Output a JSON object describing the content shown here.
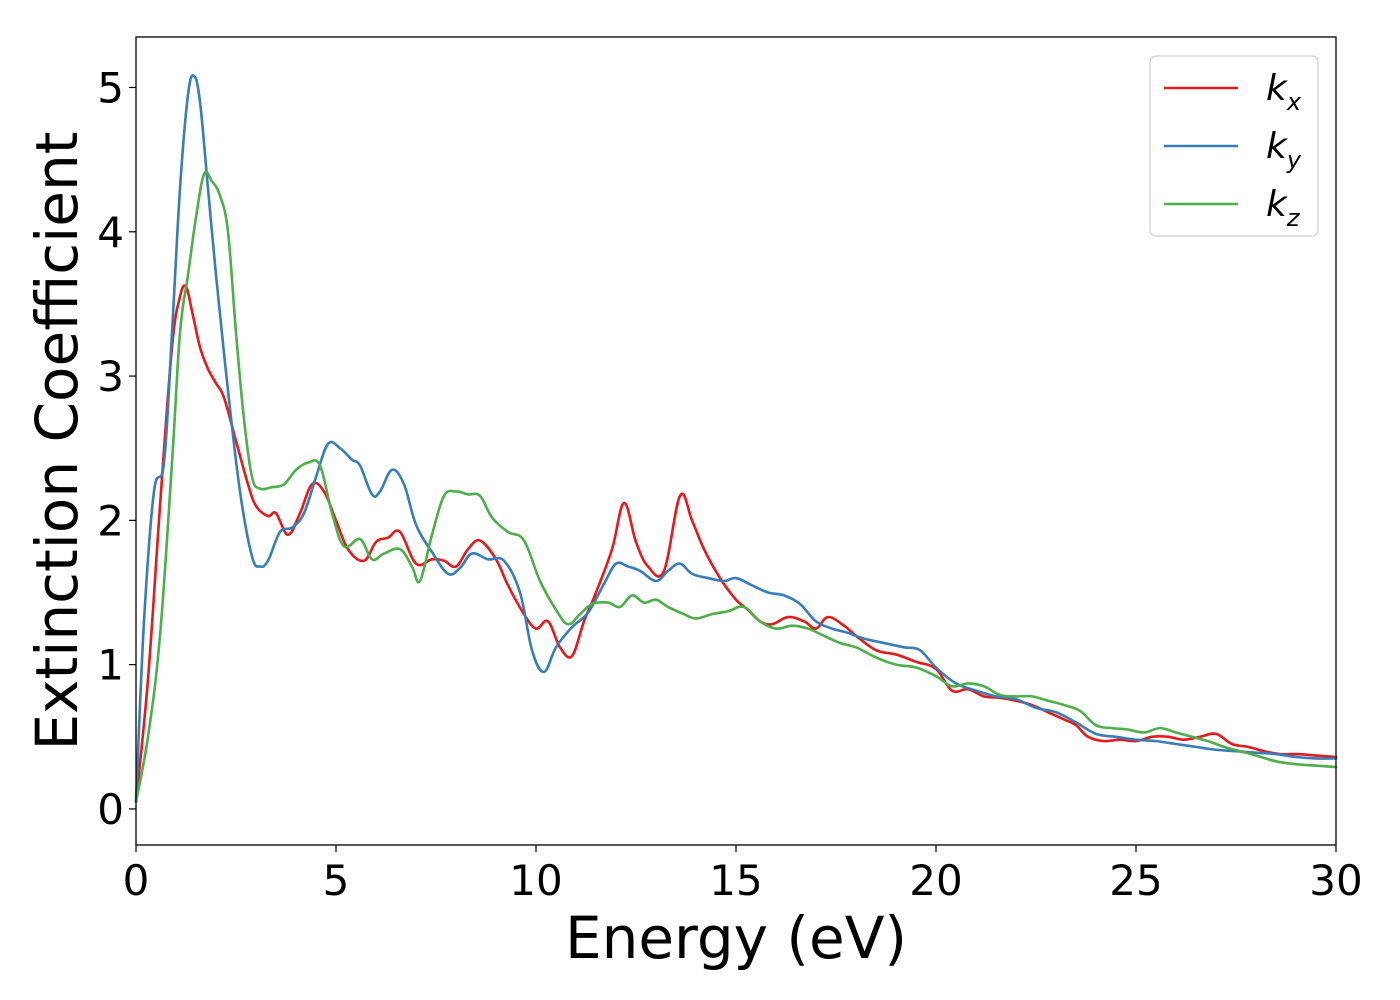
{
  "chart_data": {
    "type": "line",
    "xlabel": "Energy (eV)",
    "ylabel": "Extinction Coefficient",
    "xlim": [
      0,
      30
    ],
    "ylim": [
      -0.25,
      5.35
    ],
    "xticks": [
      0,
      5,
      10,
      15,
      20,
      25,
      30
    ],
    "yticks": [
      0,
      1,
      2,
      3,
      4,
      5
    ],
    "grid": false,
    "legend_position": "top-right",
    "series": [
      {
        "name": "k",
        "subscript": "x",
        "color": "#e41a1c",
        "x": [
          0,
          0.3,
          0.6,
          0.9,
          1.1,
          1.25,
          1.4,
          1.6,
          1.8,
          2.0,
          2.2,
          2.5,
          2.8,
          3.0,
          3.3,
          3.5,
          3.8,
          4.1,
          4.4,
          4.7,
          5.0,
          5.3,
          5.7,
          6.0,
          6.3,
          6.6,
          7.0,
          7.4,
          7.7,
          8.0,
          8.3,
          8.6,
          9.0,
          9.3,
          9.7,
          10.0,
          10.3,
          10.6,
          10.9,
          11.2,
          11.5,
          11.9,
          12.2,
          12.5,
          12.8,
          13.2,
          13.6,
          13.9,
          14.2,
          14.6,
          15.0,
          15.3,
          15.6,
          15.9,
          16.3,
          16.7,
          17.0,
          17.3,
          17.7,
          18.0,
          18.5,
          19.0,
          19.5,
          20.0,
          20.4,
          20.8,
          21.2,
          21.6,
          22.0,
          22.4,
          22.8,
          23.2,
          23.5,
          23.8,
          24.2,
          24.6,
          25.0,
          25.4,
          25.8,
          26.2,
          26.6,
          27.0,
          27.4,
          27.8,
          28.2,
          28.6,
          29.0,
          29.5,
          30.0
        ],
        "y": [
          0.05,
          0.9,
          2.1,
          3.2,
          3.55,
          3.62,
          3.45,
          3.2,
          3.05,
          2.95,
          2.85,
          2.55,
          2.25,
          2.1,
          2.03,
          2.05,
          1.9,
          2.05,
          2.25,
          2.2,
          2.0,
          1.8,
          1.72,
          1.85,
          1.88,
          1.92,
          1.7,
          1.73,
          1.72,
          1.68,
          1.8,
          1.86,
          1.73,
          1.55,
          1.35,
          1.25,
          1.3,
          1.12,
          1.06,
          1.3,
          1.5,
          1.8,
          2.12,
          1.85,
          1.68,
          1.65,
          2.17,
          2.0,
          1.8,
          1.6,
          1.45,
          1.38,
          1.3,
          1.28,
          1.33,
          1.3,
          1.25,
          1.33,
          1.27,
          1.2,
          1.1,
          1.07,
          1.02,
          0.97,
          0.82,
          0.83,
          0.78,
          0.77,
          0.75,
          0.72,
          0.67,
          0.62,
          0.58,
          0.5,
          0.47,
          0.48,
          0.47,
          0.5,
          0.5,
          0.48,
          0.5,
          0.52,
          0.45,
          0.43,
          0.4,
          0.38,
          0.38,
          0.37,
          0.36
        ]
      },
      {
        "name": "k",
        "subscript": "y",
        "color": "#377eb8",
        "x": [
          0,
          0.2,
          0.45,
          0.7,
          0.9,
          1.1,
          1.3,
          1.45,
          1.6,
          1.8,
          2.0,
          2.3,
          2.6,
          2.9,
          3.1,
          3.3,
          3.6,
          3.9,
          4.2,
          4.5,
          4.8,
          5.1,
          5.4,
          5.6,
          5.9,
          6.1,
          6.4,
          6.7,
          7.0,
          7.4,
          7.8,
          8.1,
          8.4,
          8.8,
          9.2,
          9.6,
          9.9,
          10.2,
          10.5,
          10.9,
          11.3,
          11.7,
          12.0,
          12.3,
          12.6,
          13.0,
          13.3,
          13.6,
          13.9,
          14.3,
          14.7,
          15.0,
          15.4,
          15.8,
          16.2,
          16.6,
          17.0,
          17.4,
          17.8,
          18.2,
          18.7,
          19.2,
          19.6,
          20.0,
          20.5,
          21.0,
          21.5,
          22.0,
          22.5,
          23.0,
          23.5,
          24.0,
          24.5,
          25.0,
          25.5,
          26.0,
          26.5,
          27.0,
          27.5,
          28.0,
          28.5,
          29.0,
          29.5,
          30.0
        ],
        "y": [
          0.05,
          1.3,
          2.2,
          2.4,
          3.3,
          4.3,
          4.95,
          5.08,
          4.9,
          4.3,
          3.7,
          2.9,
          2.2,
          1.75,
          1.68,
          1.72,
          1.92,
          1.95,
          2.05,
          2.3,
          2.53,
          2.5,
          2.42,
          2.38,
          2.18,
          2.2,
          2.35,
          2.25,
          1.97,
          1.78,
          1.63,
          1.67,
          1.77,
          1.73,
          1.72,
          1.5,
          1.1,
          0.95,
          1.12,
          1.26,
          1.36,
          1.56,
          1.7,
          1.68,
          1.65,
          1.58,
          1.65,
          1.7,
          1.63,
          1.6,
          1.58,
          1.6,
          1.55,
          1.5,
          1.48,
          1.42,
          1.3,
          1.25,
          1.22,
          1.18,
          1.15,
          1.12,
          1.1,
          0.98,
          0.87,
          0.82,
          0.78,
          0.76,
          0.7,
          0.67,
          0.6,
          0.52,
          0.5,
          0.48,
          0.47,
          0.45,
          0.43,
          0.41,
          0.4,
          0.39,
          0.38,
          0.36,
          0.35,
          0.35
        ]
      },
      {
        "name": "k",
        "subscript": "z",
        "color": "#4daf4a",
        "x": [
          0,
          0.3,
          0.6,
          0.9,
          1.1,
          1.3,
          1.5,
          1.7,
          1.9,
          2.1,
          2.3,
          2.5,
          2.7,
          2.9,
          3.1,
          3.4,
          3.7,
          4.0,
          4.3,
          4.6,
          4.9,
          5.2,
          5.6,
          5.9,
          6.2,
          6.6,
          6.9,
          7.1,
          7.4,
          7.7,
          8.0,
          8.3,
          8.6,
          8.9,
          9.3,
          9.7,
          10.1,
          10.5,
          10.8,
          11.1,
          11.4,
          11.8,
          12.1,
          12.4,
          12.7,
          13.0,
          13.3,
          13.7,
          14.0,
          14.4,
          14.8,
          15.2,
          15.6,
          16.0,
          16.4,
          16.8,
          17.2,
          17.6,
          18.0,
          18.5,
          19.0,
          19.5,
          20.0,
          20.4,
          20.8,
          21.2,
          21.6,
          22.0,
          22.4,
          22.8,
          23.2,
          23.6,
          24.0,
          24.4,
          24.8,
          25.2,
          25.6,
          26.0,
          26.4,
          26.8,
          27.2,
          27.6,
          28.0,
          28.5,
          29.0,
          29.5,
          30.0
        ],
        "y": [
          0.05,
          0.5,
          1.2,
          2.4,
          3.3,
          3.7,
          4.1,
          4.4,
          4.35,
          4.25,
          4.0,
          3.3,
          2.7,
          2.3,
          2.22,
          2.23,
          2.25,
          2.35,
          2.4,
          2.38,
          2.05,
          1.82,
          1.87,
          1.73,
          1.77,
          1.8,
          1.68,
          1.58,
          1.9,
          2.17,
          2.2,
          2.18,
          2.17,
          2.02,
          1.92,
          1.86,
          1.58,
          1.38,
          1.28,
          1.35,
          1.42,
          1.43,
          1.4,
          1.48,
          1.43,
          1.45,
          1.4,
          1.35,
          1.32,
          1.35,
          1.37,
          1.4,
          1.3,
          1.25,
          1.27,
          1.25,
          1.2,
          1.15,
          1.12,
          1.05,
          1.0,
          0.98,
          0.92,
          0.85,
          0.87,
          0.85,
          0.79,
          0.78,
          0.78,
          0.75,
          0.72,
          0.68,
          0.58,
          0.56,
          0.55,
          0.53,
          0.56,
          0.53,
          0.5,
          0.47,
          0.43,
          0.4,
          0.37,
          0.33,
          0.31,
          0.3,
          0.29
        ]
      }
    ]
  }
}
